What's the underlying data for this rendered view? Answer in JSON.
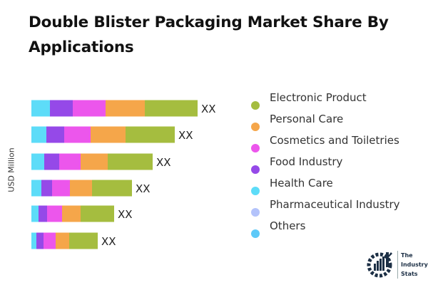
{
  "title": "Double Blister Packaging Market Share By Applications",
  "chart_data": {
    "type": "bar",
    "orientation": "horizontal",
    "stacked": true,
    "title": "Double Blister Packaging Market Share By Applications",
    "ylabel": "USD Million",
    "xlabel": "",
    "grid": false,
    "legend_position": "right",
    "categories": [
      "",
      "",
      "",
      "",
      "",
      ""
    ],
    "data_labels": [
      "XX",
      "XX",
      "XX",
      "XX",
      "XX",
      "XX"
    ],
    "series": [
      {
        "name": "Others",
        "color": "#5dc9f8",
        "values": [
          0,
          0,
          0,
          0,
          0,
          0
        ]
      },
      {
        "name": "Pharmaceutical Industry",
        "color": "#b3c3fb",
        "values": [
          0,
          0,
          0,
          0,
          0,
          0
        ]
      },
      {
        "name": "Health Care",
        "color": "#5ddcf8",
        "values": [
          26,
          21,
          18,
          14,
          10,
          7
        ]
      },
      {
        "name": "Food Industry",
        "color": "#9549e8",
        "values": [
          32,
          25,
          21,
          15,
          12,
          10
        ]
      },
      {
        "name": "Cosmetics and Toiletries",
        "color": "#ec56ec",
        "values": [
          46,
          37,
          30,
          25,
          21,
          17
        ]
      },
      {
        "name": "Personal Care",
        "color": "#f5a64a",
        "values": [
          55,
          49,
          38,
          31,
          26,
          19
        ]
      },
      {
        "name": "Electronic Product",
        "color": "#a5bd3f",
        "values": [
          74,
          69,
          63,
          56,
          47,
          40
        ]
      }
    ]
  },
  "legend": [
    {
      "label": "Electronic Product",
      "color": "#a5bd3f"
    },
    {
      "label": "Personal Care",
      "color": "#f5a64a"
    },
    {
      "label": "Cosmetics and Toiletries",
      "color": "#ec56ec"
    },
    {
      "label": "Food Industry",
      "color": "#9549e8"
    },
    {
      "label": "Health Care",
      "color": "#5ddcf8"
    },
    {
      "label": "Pharmaceutical Industry",
      "color": "#b3c3fb"
    },
    {
      "label": "Others",
      "color": "#5dc9f8"
    }
  ],
  "logo": {
    "text": "The Industry Stats"
  }
}
